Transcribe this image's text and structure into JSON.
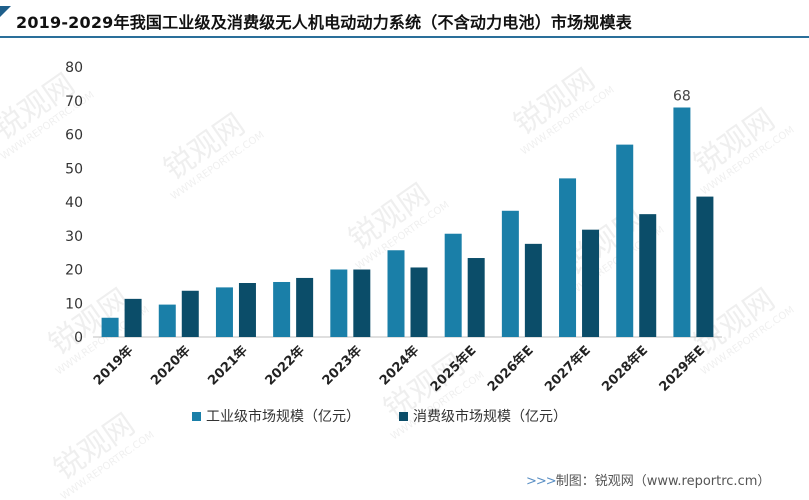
{
  "title": "2019-2029年我国工业级及消费级无人机电动动力系统（不含动力电池）市场规模表",
  "footer": {
    "arrows": ">>>",
    "text": "制图：锐观网（www.reportrc.cm）"
  },
  "watermark": {
    "brand": "锐观网",
    "url": "WWW.REPORTRC.COM"
  },
  "colors": {
    "industrial": "#1a7fa8",
    "consumer": "#0b4d69",
    "title_accent": "#1f5f8b"
  },
  "chart_data": {
    "type": "bar",
    "title": "",
    "xlabel": "",
    "ylabel": "",
    "ylim": [
      0,
      80
    ],
    "yticks": [
      0,
      10,
      20,
      30,
      40,
      50,
      60,
      70,
      80
    ],
    "grid": false,
    "legend_position": "bottom",
    "categories": [
      "2019年",
      "2020年",
      "2021年",
      "2022年",
      "2023年",
      "2024年",
      "2025年E",
      "2026年E",
      "2027年E",
      "2028年E",
      "2029年E"
    ],
    "series": [
      {
        "name": "工业级市场规模（亿元）",
        "color": "#1a7fa8",
        "values": [
          5.7,
          9.6,
          14.7,
          16.3,
          20.0,
          25.7,
          30.6,
          37.4,
          47.0,
          57.0,
          68.0
        ]
      },
      {
        "name": "消费级市场规模（亿元）",
        "color": "#0b4d69",
        "values": [
          11.3,
          13.7,
          16.0,
          17.5,
          20.0,
          20.6,
          23.4,
          27.6,
          31.8,
          36.4,
          41.6
        ]
      }
    ],
    "annotations": [
      {
        "series": 0,
        "index": 10,
        "text": "68"
      }
    ]
  }
}
